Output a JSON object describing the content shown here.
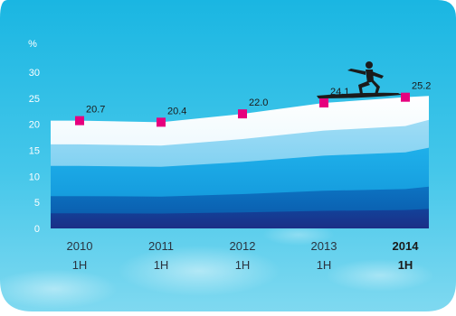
{
  "chart_data": {
    "type": "area",
    "unit_label": "%",
    "categories": [
      {
        "year": "2010",
        "period": "1H",
        "bold": false
      },
      {
        "year": "2011",
        "period": "1H",
        "bold": false
      },
      {
        "year": "2012",
        "period": "1H",
        "bold": false
      },
      {
        "year": "2013",
        "period": "1H",
        "bold": false
      },
      {
        "year": "2014",
        "period": "1H",
        "bold": true
      }
    ],
    "values": [
      20.7,
      20.4,
      22.0,
      24.1,
      25.2
    ],
    "value_labels": [
      "20.7",
      "20.4",
      "22.0",
      "24.1",
      "25.2"
    ],
    "y_ticks": [
      "0",
      "5",
      "10",
      "15",
      "20",
      "25",
      "30"
    ],
    "ylim": [
      0,
      30
    ],
    "grid": false,
    "legend": "none",
    "marker_color": "#e6007e",
    "decoration": "surfer-silhouette-icon"
  }
}
